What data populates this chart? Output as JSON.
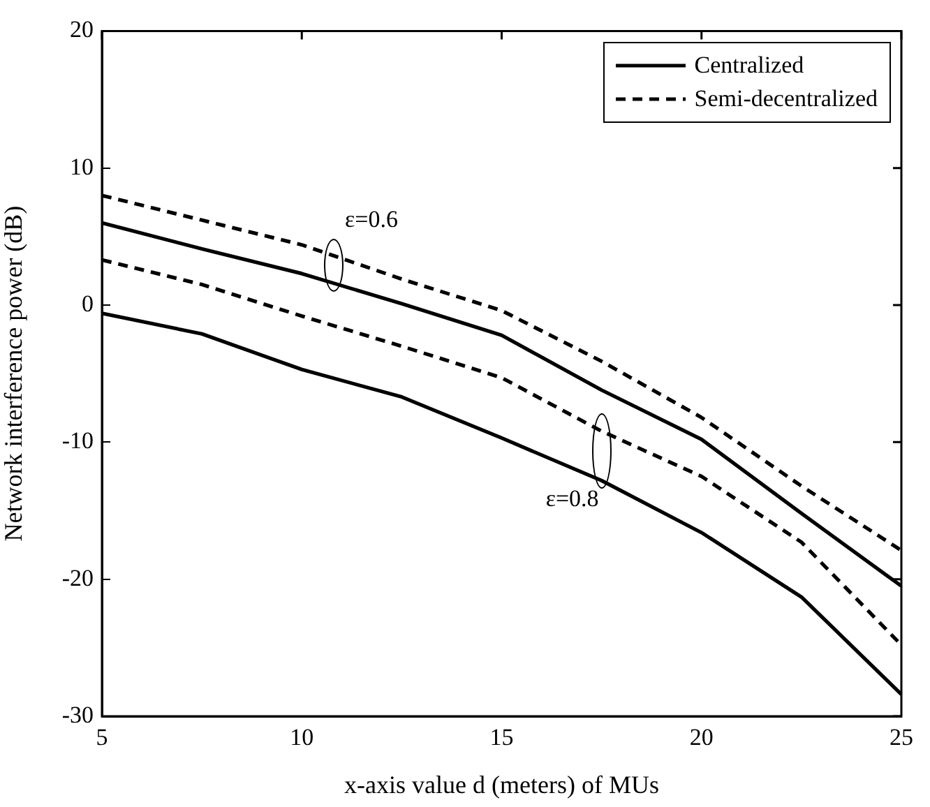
{
  "chart_data": {
    "type": "line",
    "xlabel": "x-axis value d (meters) of MUs",
    "ylabel": "Network interference power (dB)",
    "x": [
      5,
      7.5,
      10,
      12.5,
      15,
      17.5,
      20,
      22.5,
      25
    ],
    "xlim": [
      5,
      25
    ],
    "xticks": [
      5,
      10,
      15,
      20,
      25
    ],
    "ylim": [
      -30,
      20
    ],
    "yticks": [
      -30,
      -20,
      -10,
      0,
      10,
      20
    ],
    "grid": false,
    "legend": "top right",
    "marker": "none",
    "series": [
      {
        "name": "Centralized",
        "color": "#000000",
        "line_style": "solid",
        "values": [
          6.0,
          4.1,
          2.3,
          0.1,
          -2.2,
          -6.2,
          -9.8,
          -15.2,
          -20.5
        ]
      },
      {
        "name": "Semi-decentralized",
        "color": "#000000",
        "line_style": "dashed",
        "values": [
          8.0,
          6.2,
          4.4,
          1.9,
          -0.4,
          -4.1,
          -8.2,
          -13.2,
          -17.9
        ]
      },
      {
        "color": "#000000",
        "line_style": "dashed",
        "values": [
          3.3,
          1.5,
          -0.8,
          -3.0,
          -5.3,
          -9.2,
          -12.5,
          -17.3,
          -24.8
        ]
      },
      {
        "color": "#000000",
        "line_style": "solid",
        "values": [
          -0.6,
          -2.1,
          -4.7,
          -6.7,
          -9.7,
          -12.8,
          -16.6,
          -21.3,
          -28.4
        ]
      }
    ],
    "annotations": [
      {
        "text": "ε=0.6",
        "x": 10.8,
        "y": 1.6
      },
      {
        "text": "ε=0.8",
        "x": 17.5,
        "y": -12.8
      }
    ]
  }
}
